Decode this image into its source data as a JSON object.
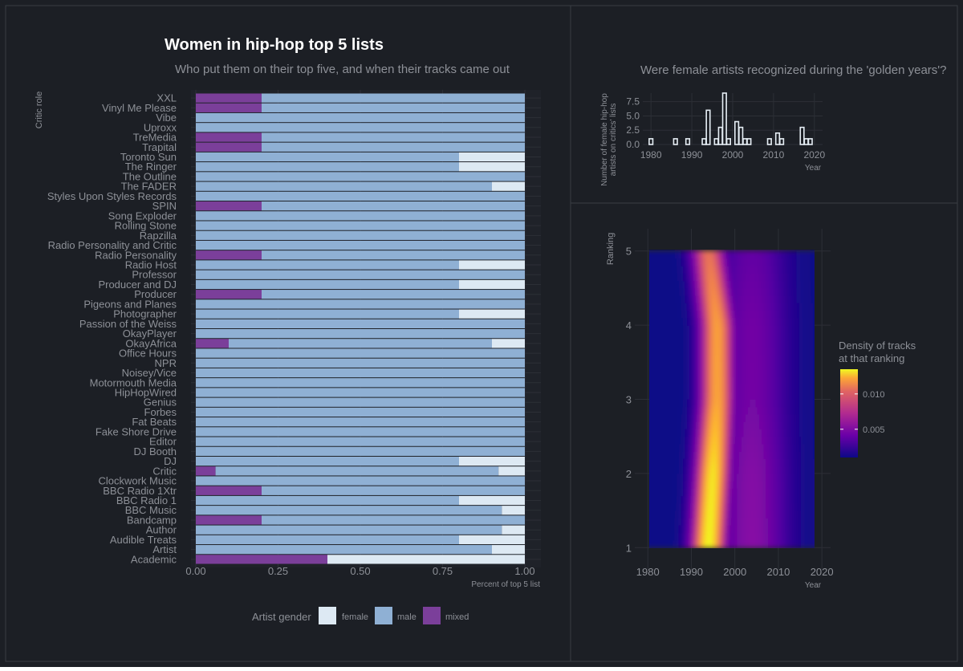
{
  "colors": {
    "background": "#1c1f25",
    "border": "#3a3d44",
    "grid": "#2c2f36",
    "text": "#d6d6d6",
    "muted": "#8d9097",
    "female": "#dde9f3",
    "male": "#8fb0d4",
    "mixed": "#7b3f9a",
    "hist_bar_stroke": "#e6eef5"
  },
  "main": {
    "title": "Women in hip-hop top 5 lists",
    "subtitle": "Who put them on their top five, and when their tracks came out"
  },
  "chart_data": [
    {
      "type": "bar",
      "orientation": "horizontal",
      "stacked": true,
      "xlabel": "Percent of top 5 list",
      "ylabel": "Critic role",
      "xlim": [
        0,
        1
      ],
      "xticks": [
        "0.00",
        "0.25",
        "0.50",
        "0.75",
        "1.00"
      ],
      "legend": {
        "title": "Artist gender",
        "position": "bottom",
        "items": [
          "female",
          "male",
          "mixed"
        ]
      },
      "categories": [
        "XXL",
        "Vinyl Me Please",
        "Vibe",
        "Uproxx",
        "TreMedia",
        "Trapital",
        "Toronto Sun",
        "The Ringer",
        "The Outline",
        "The FADER",
        "Styles Upon Styles Records",
        "SPIN",
        "Song Exploder",
        "Rolling Stone",
        "Rapzilla",
        "Radio Personality and Critic",
        "Radio Personality",
        "Radio Host",
        "Professor",
        "Producer and DJ",
        "Producer",
        "Pigeons and Planes",
        "Photographer",
        "Passion of the Weiss",
        "OkayPlayer",
        "OkayAfrica",
        "Office Hours",
        "NPR",
        "Noisey/Vice",
        "Motormouth Media",
        "HipHopWired",
        "Genius",
        "Forbes",
        "Fat Beats",
        "Fake Shore Drive",
        "Editor",
        "DJ Booth",
        "DJ",
        "Critic",
        "Clockwork Music",
        "BBC Radio 1Xtr",
        "BBC Radio 1",
        "BBC Music",
        "Bandcamp",
        "Author",
        "Audible Treats",
        "Artist",
        "Academic"
      ],
      "series": [
        {
          "name": "mixed",
          "values": [
            0.2,
            0.2,
            0,
            0,
            0.2,
            0.2,
            0,
            0,
            0,
            0,
            0,
            0.2,
            0,
            0,
            0,
            0,
            0.2,
            0,
            0,
            0,
            0.2,
            0,
            0,
            0,
            0,
            0.1,
            0,
            0,
            0,
            0,
            0,
            0,
            0,
            0,
            0,
            0,
            0,
            0,
            0.06,
            0,
            0.2,
            0,
            0,
            0.2,
            0,
            0,
            0,
            0.4
          ]
        },
        {
          "name": "male",
          "values": [
            0.8,
            0.8,
            1,
            1,
            0.8,
            0.8,
            0.8,
            0.8,
            1,
            0.9,
            1,
            0.8,
            1,
            1,
            1,
            1,
            0.8,
            0.8,
            1,
            0.8,
            0.8,
            1,
            0.8,
            1,
            1,
            0.8,
            1,
            1,
            1,
            1,
            1,
            1,
            1,
            1,
            1,
            1,
            1,
            0.8,
            0.86,
            1,
            0.8,
            0.8,
            0.93,
            0.8,
            0.93,
            0.8,
            0.9,
            0
          ]
        },
        {
          "name": "female",
          "values": [
            0,
            0,
            0,
            0,
            0,
            0,
            0.2,
            0.2,
            0,
            0.1,
            0,
            0,
            0,
            0,
            0,
            0,
            0,
            0.2,
            0,
            0.2,
            0,
            0,
            0.2,
            0,
            0,
            0.1,
            0,
            0,
            0,
            0,
            0,
            0,
            0,
            0,
            0,
            0,
            0,
            0.2,
            0.08,
            0,
            0,
            0.2,
            0.07,
            0,
            0.07,
            0.2,
            0.1,
            0.6
          ]
        }
      ]
    },
    {
      "type": "bar",
      "title": "Were female artists recognized during the 'golden years'?",
      "xlabel": "Year",
      "ylabel": "Number of female hip-hop artists on critics' lists",
      "ylabel_lines": [
        "Number of female hip-hop",
        "artists on critics' lists"
      ],
      "xlim": [
        1978,
        2022
      ],
      "ylim": [
        0,
        9
      ],
      "xticks": [
        1980,
        1990,
        2000,
        2010,
        2020
      ],
      "yticks": [
        "0.0",
        "2.5",
        "5.0",
        "7.5"
      ],
      "x": [
        1980,
        1986,
        1989,
        1993,
        1994,
        1996,
        1997,
        1998,
        1999,
        2001,
        2002,
        2003,
        2004,
        2009,
        2011,
        2012,
        2017,
        2018,
        2019
      ],
      "values": [
        1,
        1,
        1,
        1,
        6,
        1,
        3,
        9,
        1,
        4,
        3,
        1,
        1,
        1,
        2,
        1,
        3,
        1,
        1
      ]
    },
    {
      "type": "heatmap",
      "xlabel": "Year",
      "ylabel": "Ranking",
      "xlim": [
        1977,
        2022
      ],
      "ylim": [
        0.7,
        5.3
      ],
      "xticks": [
        1980,
        1990,
        2000,
        2010,
        2020
      ],
      "yticks": [
        1,
        2,
        3,
        4,
        5
      ],
      "legend": {
        "title_lines": [
          "Density of tracks",
          " at that ranking"
        ],
        "ticks": [
          "0.005",
          "0.010"
        ],
        "tick_values": [
          0.005,
          0.01
        ],
        "range": [
          0.001,
          0.0135
        ],
        "position": "right"
      },
      "peak_year_by_ranking": [
        [
          1,
          1994
        ],
        [
          2,
          1995
        ],
        [
          3,
          1996
        ],
        [
          4,
          1996
        ],
        [
          5,
          1994
        ]
      ],
      "peak_density_by_ranking": [
        [
          1,
          0.0135
        ],
        [
          2,
          0.013
        ],
        [
          3,
          0.011
        ],
        [
          4,
          0.0108
        ],
        [
          5,
          0.009
        ]
      ]
    }
  ]
}
